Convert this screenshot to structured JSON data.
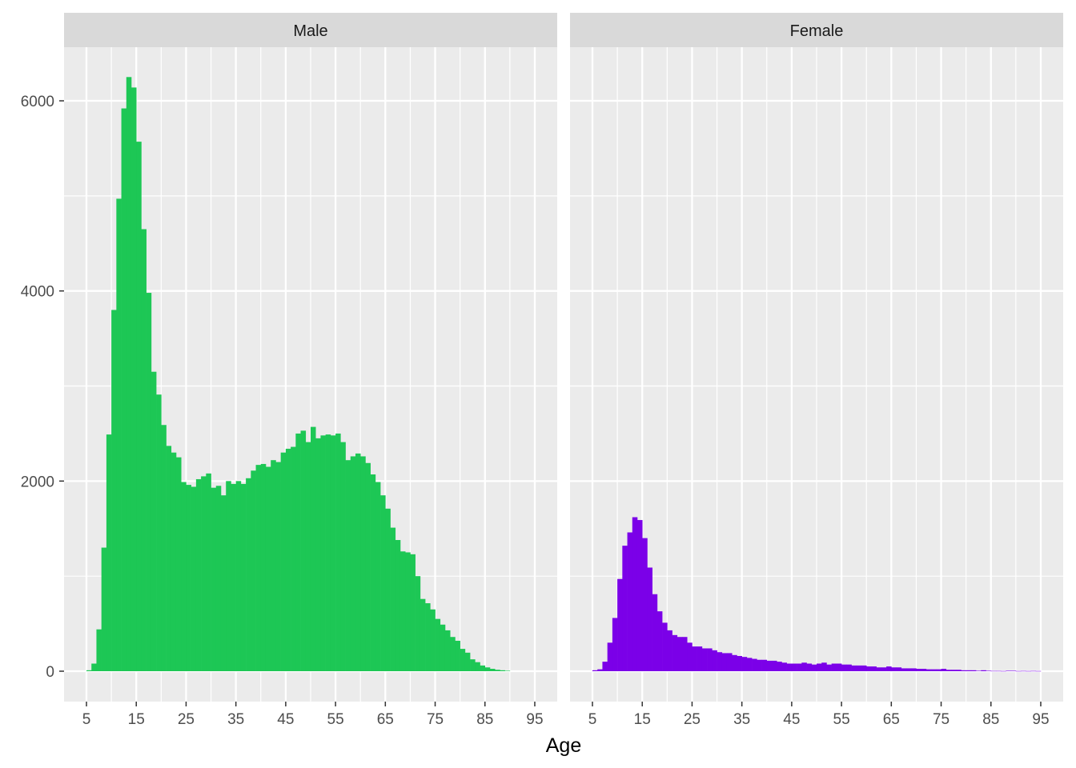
{
  "chart_data": {
    "type": "bar",
    "subtype": "faceted-histogram",
    "title": "",
    "xlabel": "Age",
    "ylabel": "",
    "xlim": [
      1,
      99
    ],
    "ylim": [
      -250,
      6560
    ],
    "x_ticks": [
      5,
      15,
      25,
      35,
      45,
      55,
      65,
      75,
      85,
      95
    ],
    "y_ticks": [
      0,
      2000,
      4000,
      6000
    ],
    "grid": true,
    "legend": null,
    "bin_width": 1,
    "facets": [
      {
        "label": "Male",
        "color": "#1dc755",
        "bin_starts": [
          5,
          6,
          7,
          8,
          9,
          10,
          11,
          12,
          13,
          14,
          15,
          16,
          17,
          18,
          19,
          20,
          21,
          22,
          23,
          24,
          25,
          26,
          27,
          28,
          29,
          30,
          31,
          32,
          33,
          34,
          35,
          36,
          37,
          38,
          39,
          40,
          41,
          42,
          43,
          44,
          45,
          46,
          47,
          48,
          49,
          50,
          51,
          52,
          53,
          54,
          55,
          56,
          57,
          58,
          59,
          60,
          61,
          62,
          63,
          64,
          65,
          66,
          67,
          68,
          69,
          70,
          71,
          72,
          73,
          74,
          75,
          76,
          77,
          78,
          79,
          80,
          81,
          82,
          83,
          84,
          85,
          86,
          87,
          88,
          89
        ],
        "values": [
          10,
          80,
          440,
          1300,
          2490,
          3800,
          4970,
          5920,
          6250,
          6140,
          5570,
          4650,
          3980,
          3150,
          2910,
          2590,
          2370,
          2300,
          2250,
          1990,
          1960,
          1940,
          2020,
          2050,
          2080,
          1930,
          1950,
          1850,
          2000,
          1970,
          2000,
          1970,
          2030,
          2110,
          2170,
          2180,
          2150,
          2220,
          2200,
          2300,
          2340,
          2360,
          2500,
          2530,
          2410,
          2570,
          2450,
          2480,
          2490,
          2480,
          2500,
          2410,
          2220,
          2260,
          2290,
          2260,
          2190,
          2070,
          1990,
          1850,
          1710,
          1510,
          1380,
          1260,
          1250,
          1230,
          1000,
          760,
          715,
          650,
          550,
          490,
          430,
          360,
          320,
          235,
          195,
          125,
          95,
          60,
          40,
          25,
          15,
          10,
          5
        ]
      },
      {
        "label": "Female",
        "color": "#7b00e8",
        "bin_starts": [
          5,
          6,
          7,
          8,
          9,
          10,
          11,
          12,
          13,
          14,
          15,
          16,
          17,
          18,
          19,
          20,
          21,
          22,
          23,
          24,
          25,
          26,
          27,
          28,
          29,
          30,
          31,
          32,
          33,
          34,
          35,
          36,
          37,
          38,
          39,
          40,
          41,
          42,
          43,
          44,
          45,
          46,
          47,
          48,
          49,
          50,
          51,
          52,
          53,
          54,
          55,
          56,
          57,
          58,
          59,
          60,
          61,
          62,
          63,
          64,
          65,
          66,
          67,
          68,
          69,
          70,
          71,
          72,
          73,
          74,
          75,
          76,
          77,
          78,
          79,
          80,
          81,
          82,
          83,
          84,
          85,
          86,
          87,
          88,
          89,
          90,
          91,
          92,
          93,
          94
        ],
        "values": [
          10,
          20,
          100,
          300,
          560,
          970,
          1320,
          1460,
          1620,
          1590,
          1400,
          1090,
          810,
          630,
          510,
          430,
          380,
          360,
          360,
          300,
          260,
          260,
          240,
          240,
          220,
          200,
          190,
          190,
          170,
          160,
          150,
          140,
          130,
          120,
          120,
          110,
          110,
          100,
          90,
          80,
          80,
          80,
          90,
          80,
          70,
          80,
          90,
          70,
          80,
          80,
          70,
          70,
          60,
          60,
          60,
          50,
          50,
          40,
          40,
          50,
          40,
          40,
          30,
          30,
          30,
          25,
          25,
          20,
          20,
          20,
          25,
          15,
          15,
          15,
          10,
          10,
          10,
          5,
          10,
          5,
          3,
          3,
          2,
          5,
          5,
          2,
          3,
          2,
          3,
          2
        ]
      }
    ]
  },
  "facets": {
    "left": {
      "label": "Male"
    },
    "right": {
      "label": "Female"
    }
  },
  "axes": {
    "x_title": "Age",
    "x_tick_labels": [
      "5",
      "15",
      "25",
      "35",
      "45",
      "55",
      "65",
      "75",
      "85",
      "95"
    ],
    "y_tick_labels": [
      "0",
      "2000",
      "4000",
      "6000"
    ]
  }
}
